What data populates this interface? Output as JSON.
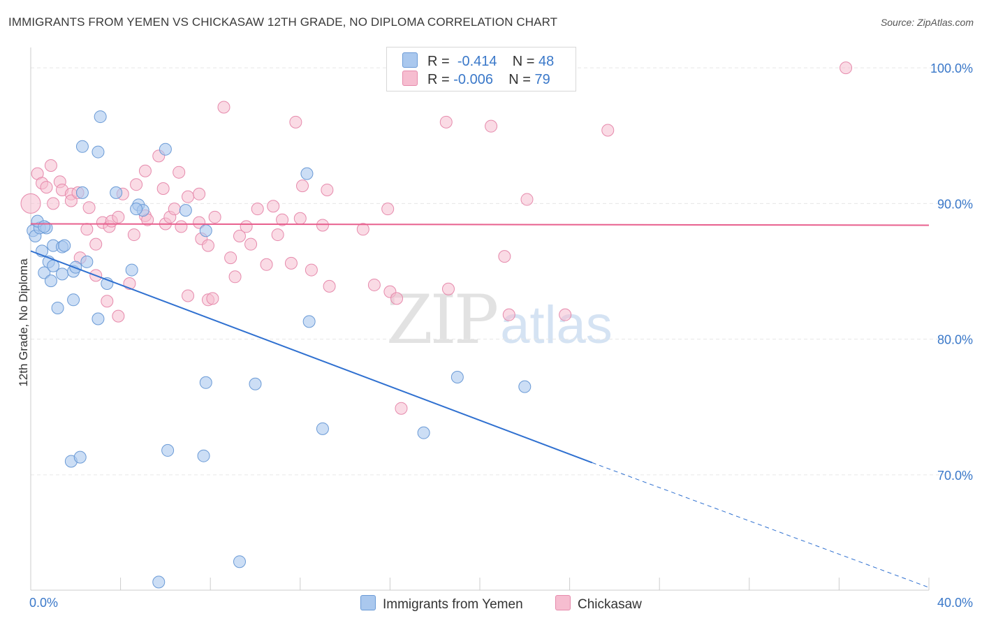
{
  "title": "IMMIGRANTS FROM YEMEN VS CHICKASAW 12TH GRADE, NO DIPLOMA CORRELATION CHART",
  "source": "Source: ZipAtlas.com",
  "watermark": {
    "zip": "ZIP",
    "atlas": "atlas"
  },
  "colors": {
    "blue_fill": "#aac8ee",
    "blue_stroke": "#6a9ad6",
    "blue_line": "#2f70d0",
    "pink_fill": "#f6bdd0",
    "pink_stroke": "#e68aac",
    "pink_line": "#e8608e",
    "axis_label": "#3a78c9"
  },
  "legend": {
    "rows": [
      {
        "r_label": "R =",
        "r_value": "-0.414",
        "n_label": "N =",
        "n_value": "48"
      },
      {
        "r_label": "R =",
        "r_value": "-0.006",
        "n_label": "N =",
        "n_value": "79"
      }
    ]
  },
  "bottom_legend": [
    "Immigrants from Yemen",
    "Chickasaw"
  ],
  "chart_data": {
    "type": "scatter",
    "title": "IMMIGRANTS FROM YEMEN VS CHICKASAW 12TH GRADE, NO DIPLOMA CORRELATION CHART",
    "xlabel": "",
    "ylabel": "12th Grade, No Diploma",
    "xlim": [
      0,
      40
    ],
    "ylim": [
      61.5,
      101.5
    ],
    "x_tick_labels": [
      "0.0%",
      "40.0%"
    ],
    "y_ticks": [
      70,
      80,
      90,
      100
    ],
    "y_tick_labels": [
      "70.0%",
      "80.0%",
      "90.0%",
      "100.0%"
    ],
    "grid": true,
    "legend_position": "top-center",
    "series": [
      {
        "name": "Immigrants from Yemen",
        "R": -0.414,
        "N": 48,
        "trend": {
          "x": [
            0,
            25
          ],
          "y": [
            86.5,
            70.9
          ],
          "dashed_to": [
            40,
            61.7
          ]
        },
        "points": [
          [
            0.1,
            88.0
          ],
          [
            0.2,
            87.6
          ],
          [
            0.4,
            88.2
          ],
          [
            0.7,
            88.2
          ],
          [
            0.5,
            86.5
          ],
          [
            0.8,
            85.7
          ],
          [
            0.6,
            84.9
          ],
          [
            0.9,
            84.3
          ],
          [
            1.0,
            85.4
          ],
          [
            1.0,
            86.9
          ],
          [
            1.4,
            86.8
          ],
          [
            1.5,
            86.9
          ],
          [
            1.4,
            84.8
          ],
          [
            1.9,
            85.0
          ],
          [
            2.0,
            85.3
          ],
          [
            1.2,
            82.3
          ],
          [
            1.9,
            82.9
          ],
          [
            2.3,
            94.2
          ],
          [
            2.3,
            90.8
          ],
          [
            3.0,
            93.8
          ],
          [
            3.1,
            96.4
          ],
          [
            3.0,
            81.5
          ],
          [
            3.4,
            84.1
          ],
          [
            3.8,
            90.8
          ],
          [
            4.5,
            85.1
          ],
          [
            4.8,
            89.9
          ],
          [
            5.0,
            89.5
          ],
          [
            6.0,
            94.0
          ],
          [
            6.9,
            89.5
          ],
          [
            7.8,
            88.0
          ],
          [
            7.8,
            76.8
          ],
          [
            7.7,
            71.4
          ],
          [
            6.1,
            71.8
          ],
          [
            10.0,
            76.7
          ],
          [
            12.3,
            92.2
          ],
          [
            12.4,
            81.3
          ],
          [
            13.0,
            73.4
          ],
          [
            17.5,
            73.1
          ],
          [
            19.0,
            77.2
          ],
          [
            22.0,
            76.5
          ],
          [
            1.8,
            71.0
          ],
          [
            2.2,
            71.3
          ],
          [
            9.3,
            63.6
          ],
          [
            5.7,
            62.1
          ],
          [
            0.3,
            88.7
          ],
          [
            0.6,
            88.3
          ],
          [
            2.5,
            85.7
          ],
          [
            4.7,
            89.6
          ]
        ]
      },
      {
        "name": "Chickasaw",
        "R": -0.006,
        "N": 79,
        "trend": {
          "x": [
            0,
            40
          ],
          "y": [
            88.5,
            88.4
          ]
        },
        "points": [
          [
            0.0,
            90.0
          ],
          [
            0.3,
            92.2
          ],
          [
            0.5,
            91.5
          ],
          [
            0.7,
            91.2
          ],
          [
            0.9,
            92.8
          ],
          [
            1.0,
            90.0
          ],
          [
            1.3,
            91.6
          ],
          [
            1.4,
            91.0
          ],
          [
            1.8,
            90.7
          ],
          [
            1.8,
            90.2
          ],
          [
            2.1,
            90.8
          ],
          [
            2.6,
            89.7
          ],
          [
            2.5,
            88.1
          ],
          [
            2.9,
            87.0
          ],
          [
            3.2,
            88.6
          ],
          [
            3.5,
            88.3
          ],
          [
            3.6,
            88.7
          ],
          [
            3.9,
            89.0
          ],
          [
            4.1,
            90.7
          ],
          [
            4.7,
            91.4
          ],
          [
            4.6,
            87.7
          ],
          [
            5.1,
            89.1
          ],
          [
            5.2,
            88.8
          ],
          [
            5.1,
            92.4
          ],
          [
            5.7,
            93.5
          ],
          [
            5.9,
            91.1
          ],
          [
            6.0,
            88.5
          ],
          [
            6.2,
            89.0
          ],
          [
            6.4,
            89.6
          ],
          [
            6.6,
            92.3
          ],
          [
            6.7,
            88.3
          ],
          [
            7.0,
            90.5
          ],
          [
            7.5,
            88.6
          ],
          [
            7.5,
            90.7
          ],
          [
            7.6,
            87.4
          ],
          [
            7.9,
            86.9
          ],
          [
            8.2,
            89.0
          ],
          [
            8.6,
            97.1
          ],
          [
            8.9,
            86.0
          ],
          [
            9.1,
            84.6
          ],
          [
            9.3,
            87.6
          ],
          [
            9.6,
            88.3
          ],
          [
            9.8,
            87.0
          ],
          [
            10.1,
            89.6
          ],
          [
            10.5,
            85.5
          ],
          [
            10.8,
            89.8
          ],
          [
            11.0,
            87.7
          ],
          [
            11.2,
            88.8
          ],
          [
            11.6,
            85.6
          ],
          [
            11.8,
            96.0
          ],
          [
            12.0,
            88.9
          ],
          [
            12.1,
            91.3
          ],
          [
            12.5,
            85.1
          ],
          [
            13.2,
            91.0
          ],
          [
            13.0,
            88.4
          ],
          [
            13.3,
            83.9
          ],
          [
            14.8,
            88.1
          ],
          [
            15.3,
            84.0
          ],
          [
            15.9,
            89.6
          ],
          [
            16.0,
            83.5
          ],
          [
            16.3,
            83.0
          ],
          [
            16.5,
            74.9
          ],
          [
            18.5,
            96.0
          ],
          [
            18.6,
            83.7
          ],
          [
            20.5,
            95.7
          ],
          [
            21.1,
            86.1
          ],
          [
            21.3,
            81.8
          ],
          [
            22.1,
            90.3
          ],
          [
            23.8,
            81.8
          ],
          [
            25.7,
            95.4
          ],
          [
            36.3,
            100.0
          ],
          [
            2.2,
            86.0
          ],
          [
            3.4,
            82.8
          ],
          [
            3.9,
            81.7
          ],
          [
            4.4,
            84.1
          ],
          [
            7.0,
            83.2
          ],
          [
            7.9,
            82.9
          ],
          [
            8.1,
            83.0
          ],
          [
            2.9,
            84.7
          ]
        ]
      }
    ]
  }
}
